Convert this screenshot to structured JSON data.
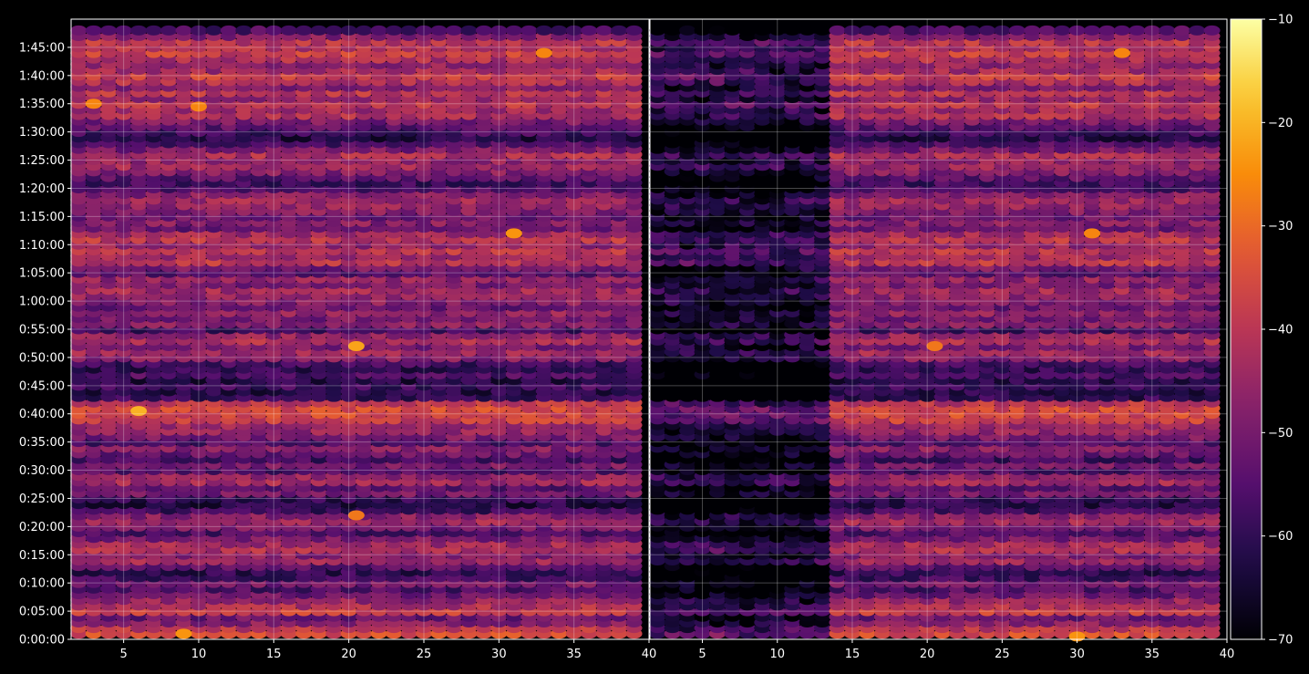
{
  "chart_data": {
    "type": "heatmap",
    "title": "",
    "xlabel": "",
    "ylabel": "",
    "background": "#000000",
    "colormap": "inferno",
    "grid": true,
    "panels": [
      {
        "name": "left",
        "x_range": [
          1.5,
          40
        ],
        "x_ticks": [
          5,
          10,
          15,
          20,
          25,
          30,
          35,
          40
        ],
        "x_tick_labels": [
          "5",
          "10",
          "15",
          "20",
          "25",
          "30",
          "35",
          "40"
        ]
      },
      {
        "name": "right",
        "x_range": [
          1.5,
          40
        ],
        "x_ticks": [
          5,
          10,
          15,
          20,
          25,
          30,
          35,
          40
        ],
        "x_tick_labels": [
          "5",
          "10",
          "15",
          "20",
          "25",
          "30",
          "35",
          "40"
        ]
      }
    ],
    "y_range_seconds": [
      0,
      6600
    ],
    "y_ticks_seconds": [
      0,
      300,
      600,
      900,
      1200,
      1500,
      1800,
      2100,
      2400,
      2700,
      3000,
      3300,
      3600,
      3900,
      4200,
      4500,
      4800,
      5100,
      5400,
      5700,
      6000,
      6300
    ],
    "y_tick_labels": [
      "0:00:00",
      "0:05:00",
      "0:10:00",
      "0:15:00",
      "0:20:00",
      "0:25:00",
      "0:30:00",
      "0:35:00",
      "0:40:00",
      "0:45:00",
      "0:50:00",
      "0:55:00",
      "1:00:00",
      "1:05:00",
      "1:10:00",
      "1:15:00",
      "1:20:00",
      "1:25:00",
      "1:30:00",
      "1:35:00",
      "1:40:00",
      "1:45:00"
    ],
    "colorbar": {
      "range": [
        -70,
        -10
      ],
      "ticks": [
        -10,
        -20,
        -30,
        -40,
        -50,
        -60,
        -70
      ],
      "tick_labels": [
        "−10",
        "−20",
        "−30",
        "−40",
        "−50",
        "−60",
        "−70"
      ]
    },
    "row_profile": [
      {
        "t": 60,
        "v": -35
      },
      {
        "t": 120,
        "v": -40
      },
      {
        "t": 180,
        "v": -48
      },
      {
        "t": 240,
        "v": -52
      },
      {
        "t": 300,
        "v": -38
      },
      {
        "t": 360,
        "v": -42
      },
      {
        "t": 420,
        "v": -46
      },
      {
        "t": 480,
        "v": -52
      },
      {
        "t": 540,
        "v": -56
      },
      {
        "t": 600,
        "v": -50
      },
      {
        "t": 660,
        "v": -58
      },
      {
        "t": 720,
        "v": -60
      },
      {
        "t": 780,
        "v": -54
      },
      {
        "t": 840,
        "v": -44
      },
      {
        "t": 900,
        "v": -48
      },
      {
        "t": 960,
        "v": -42
      },
      {
        "t": 1020,
        "v": -44
      },
      {
        "t": 1080,
        "v": -50
      },
      {
        "t": 1140,
        "v": -56
      },
      {
        "t": 1200,
        "v": -50
      },
      {
        "t": 1260,
        "v": -44
      },
      {
        "t": 1320,
        "v": -48
      },
      {
        "t": 1380,
        "v": -58
      },
      {
        "t": 1440,
        "v": -62
      },
      {
        "t": 1500,
        "v": -60
      },
      {
        "t": 1560,
        "v": -50
      },
      {
        "t": 1620,
        "v": -54
      },
      {
        "t": 1680,
        "v": -44
      },
      {
        "t": 1740,
        "v": -46
      },
      {
        "t": 1800,
        "v": -56
      },
      {
        "t": 1860,
        "v": -50
      },
      {
        "t": 1920,
        "v": -58
      },
      {
        "t": 1980,
        "v": -52
      },
      {
        "t": 2040,
        "v": -48
      },
      {
        "t": 2100,
        "v": -56
      },
      {
        "t": 2160,
        "v": -50
      },
      {
        "t": 2220,
        "v": -46
      },
      {
        "t": 2280,
        "v": -44
      },
      {
        "t": 2340,
        "v": -38
      },
      {
        "t": 2400,
        "v": -36
      },
      {
        "t": 2460,
        "v": -36
      },
      {
        "t": 2520,
        "v": -40
      },
      {
        "t": 2580,
        "v": -60
      },
      {
        "t": 2640,
        "v": -62
      },
      {
        "t": 2700,
        "v": -58
      },
      {
        "t": 2760,
        "v": -62
      },
      {
        "t": 2820,
        "v": -56
      },
      {
        "t": 2880,
        "v": -60
      },
      {
        "t": 2940,
        "v": -58
      },
      {
        "t": 3000,
        "v": -48
      },
      {
        "t": 3060,
        "v": -44
      },
      {
        "t": 3120,
        "v": -50
      },
      {
        "t": 3180,
        "v": -42
      },
      {
        "t": 3240,
        "v": -46
      },
      {
        "t": 3300,
        "v": -58
      },
      {
        "t": 3360,
        "v": -48
      },
      {
        "t": 3420,
        "v": -50
      },
      {
        "t": 3480,
        "v": -46
      },
      {
        "t": 3540,
        "v": -52
      },
      {
        "t": 3600,
        "v": -48
      },
      {
        "t": 3660,
        "v": -46
      },
      {
        "t": 3720,
        "v": -44
      },
      {
        "t": 3780,
        "v": -50
      },
      {
        "t": 3840,
        "v": -46
      },
      {
        "t": 3900,
        "v": -54
      },
      {
        "t": 3960,
        "v": -50
      },
      {
        "t": 4020,
        "v": -40
      },
      {
        "t": 4080,
        "v": -44
      },
      {
        "t": 4140,
        "v": -40
      },
      {
        "t": 4200,
        "v": -46
      },
      {
        "t": 4260,
        "v": -40
      },
      {
        "t": 4320,
        "v": -44
      },
      {
        "t": 4380,
        "v": -52
      },
      {
        "t": 4440,
        "v": -48
      },
      {
        "t": 4500,
        "v": -52
      },
      {
        "t": 4560,
        "v": -48
      },
      {
        "t": 4620,
        "v": -46
      },
      {
        "t": 4680,
        "v": -44
      },
      {
        "t": 4740,
        "v": -48
      },
      {
        "t": 4800,
        "v": -56
      },
      {
        "t": 4860,
        "v": -58
      },
      {
        "t": 4920,
        "v": -54
      },
      {
        "t": 4980,
        "v": -48
      },
      {
        "t": 5040,
        "v": -44
      },
      {
        "t": 5100,
        "v": -46
      },
      {
        "t": 5160,
        "v": -42
      },
      {
        "t": 5220,
        "v": -50
      },
      {
        "t": 5280,
        "v": -56
      },
      {
        "t": 5340,
        "v": -62
      },
      {
        "t": 5400,
        "v": -58
      },
      {
        "t": 5460,
        "v": -54
      },
      {
        "t": 5520,
        "v": -50
      },
      {
        "t": 5580,
        "v": -42
      },
      {
        "t": 5640,
        "v": -44
      },
      {
        "t": 5700,
        "v": -40
      },
      {
        "t": 5760,
        "v": -46
      },
      {
        "t": 5820,
        "v": -40
      },
      {
        "t": 5880,
        "v": -48
      },
      {
        "t": 5940,
        "v": -42
      },
      {
        "t": 6000,
        "v": -38
      },
      {
        "t": 6060,
        "v": -44
      },
      {
        "t": 6120,
        "v": -46
      },
      {
        "t": 6180,
        "v": -42
      },
      {
        "t": 6240,
        "v": -38
      },
      {
        "t": 6300,
        "v": -42
      },
      {
        "t": 6360,
        "v": -40
      },
      {
        "t": 6420,
        "v": -48
      },
      {
        "t": 6480,
        "v": -56
      }
    ],
    "hotspots": [
      {
        "panel": 0,
        "x": 6,
        "t": 2430,
        "v": -20
      },
      {
        "panel": 0,
        "x": 9,
        "t": 60,
        "v": -24
      },
      {
        "panel": 0,
        "x": 10,
        "t": 5670,
        "v": -26
      },
      {
        "panel": 0,
        "x": 20.5,
        "t": 3120,
        "v": -22
      },
      {
        "panel": 0,
        "x": 20.5,
        "t": 1320,
        "v": -28
      },
      {
        "panel": 0,
        "x": 31,
        "t": 4320,
        "v": -24
      },
      {
        "panel": 0,
        "x": 33,
        "t": 6240,
        "v": -26
      },
      {
        "panel": 0,
        "x": 3,
        "t": 5700,
        "v": -26
      },
      {
        "panel": 1,
        "x": 20.5,
        "t": 3120,
        "v": -28
      },
      {
        "panel": 1,
        "x": 31,
        "t": 4320,
        "v": -26
      },
      {
        "panel": 1,
        "x": 33,
        "t": 6240,
        "v": -26
      },
      {
        "panel": 1,
        "x": 30,
        "t": 30,
        "v": -24
      }
    ]
  }
}
